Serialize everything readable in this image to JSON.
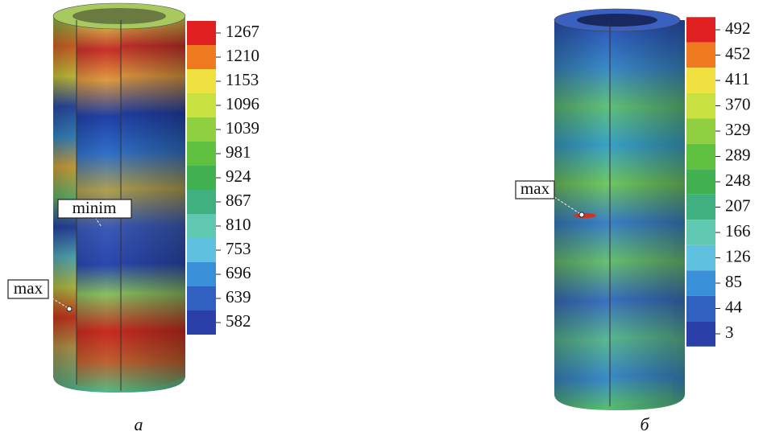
{
  "panel_a": {
    "legend": [
      1267,
      1210,
      1153,
      1096,
      1039,
      981,
      924,
      867,
      810,
      753,
      696,
      639,
      582
    ],
    "annotations": [
      "minim",
      "max"
    ],
    "caption": "а"
  },
  "panel_b": {
    "legend": [
      492,
      452,
      411,
      370,
      329,
      289,
      248,
      207,
      166,
      126,
      85,
      44,
      3
    ],
    "annotations": [
      "max"
    ],
    "caption": "б"
  }
}
